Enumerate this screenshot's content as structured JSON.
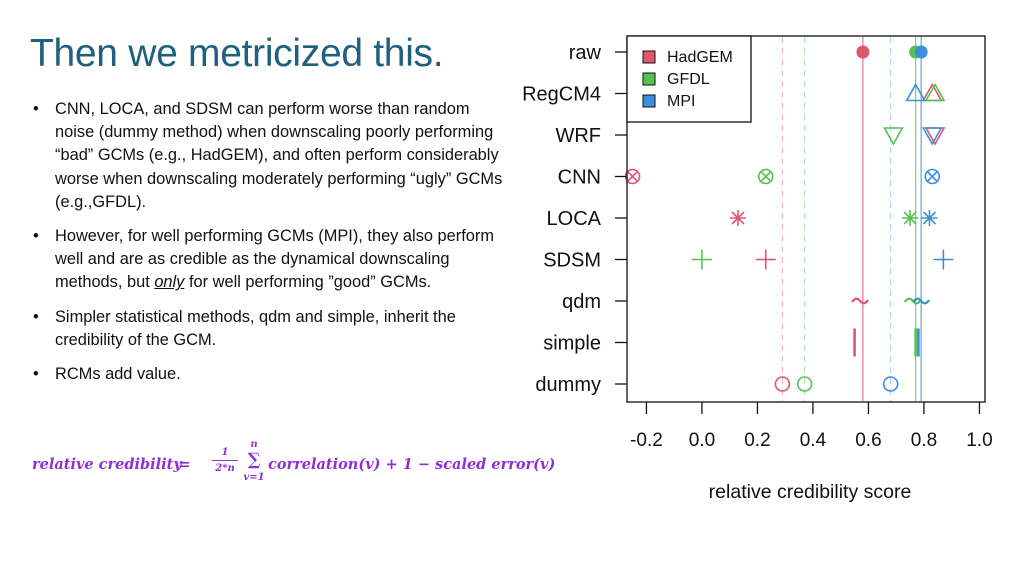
{
  "slide": {
    "title": "Then we metricized this.",
    "bullets": [
      {
        "text_before": "CNN, LOCA, and SDSM can perform worse than random noise (dummy method) when downscaling poorly performing “bad” GCMs (e.g., HadGEM), and often perform considerably worse when downscaling moderately performing “ugly” GCMs (e.g.,GFDL).",
        "emphasis": "",
        "text_after": ""
      },
      {
        "text_before": "However, for well performing GCMs (MPI), they also perform well and are as credible as the dynamical downscaling methods, but ",
        "emphasis": "only",
        "text_after": " for well performing ”good” GCMs."
      },
      {
        "text_before": "Simpler statistical methods, qdm and simple, inherit the credibility of the GCM.",
        "emphasis": "",
        "text_after": ""
      },
      {
        "text_before": "RCMs add value.",
        "emphasis": "",
        "text_after": ""
      }
    ],
    "formula": {
      "lhs": "relative credibility",
      "equals": "=",
      "frac_num": "1",
      "frac_den": "2*n",
      "sum_top": "n",
      "sum_symbol": "∑",
      "sum_bottom": "v=1",
      "rhs": "correlation(v) + 1 − scaled error(v)"
    },
    "color": "#8f2fd8"
  },
  "chart_data": {
    "type": "scatter",
    "title": "",
    "xlabel": "relative credibility score",
    "ylabel": "",
    "xlim": [
      -0.27,
      1.02
    ],
    "xticks": [
      -0.2,
      0.0,
      0.2,
      0.4,
      0.6,
      0.8,
      1.0
    ],
    "xtick_labels": [
      "-0.2",
      "0.0",
      "0.2",
      "0.4",
      "0.6",
      "0.8",
      "1.0"
    ],
    "categories": [
      "raw",
      "RegCM4",
      "WRF",
      "CNN",
      "LOCA",
      "SDSM",
      "qdm",
      "simple",
      "dummy"
    ],
    "legend_position": "top-left",
    "grid": false,
    "series": [
      {
        "name": "HadGEM",
        "color": "#e0566f",
        "points": [
          {
            "method": "raw",
            "x": 0.58,
            "marker": "filled-circle"
          },
          {
            "method": "RegCM4",
            "x": 0.83,
            "marker": "triangle-up"
          },
          {
            "method": "WRF",
            "x": 0.84,
            "marker": "triangle-down"
          },
          {
            "method": "CNN",
            "x": -0.25,
            "marker": "circle-x"
          },
          {
            "method": "LOCA",
            "x": 0.13,
            "marker": "asterisk"
          },
          {
            "method": "SDSM",
            "x": 0.23,
            "marker": "plus"
          },
          {
            "method": "qdm",
            "x": 0.57,
            "marker": "tilde"
          },
          {
            "method": "simple",
            "x": 0.55,
            "marker": "bar"
          },
          {
            "method": "dummy",
            "x": 0.29,
            "marker": "open-circle"
          }
        ],
        "reference_lines": [
          {
            "x": 0.58,
            "style": "solid"
          },
          {
            "x": 0.29,
            "style": "dashed"
          }
        ]
      },
      {
        "name": "GFDL",
        "color": "#55c24f",
        "points": [
          {
            "method": "raw",
            "x": 0.77,
            "marker": "filled-circle"
          },
          {
            "method": "RegCM4",
            "x": 0.84,
            "marker": "triangle-up"
          },
          {
            "method": "WRF",
            "x": 0.69,
            "marker": "triangle-down"
          },
          {
            "method": "CNN",
            "x": 0.23,
            "marker": "circle-x"
          },
          {
            "method": "LOCA",
            "x": 0.75,
            "marker": "asterisk"
          },
          {
            "method": "SDSM",
            "x": 0.0,
            "marker": "plus"
          },
          {
            "method": "qdm",
            "x": 0.76,
            "marker": "tilde"
          },
          {
            "method": "simple",
            "x": 0.77,
            "marker": "bar"
          },
          {
            "method": "dummy",
            "x": 0.37,
            "marker": "open-circle"
          }
        ],
        "reference_lines": [
          {
            "x": 0.77,
            "style": "solid"
          },
          {
            "x": 0.37,
            "style": "dashed"
          }
        ]
      },
      {
        "name": "MPI",
        "color": "#3e8fdb",
        "points": [
          {
            "method": "raw",
            "x": 0.79,
            "marker": "filled-circle"
          },
          {
            "method": "RegCM4",
            "x": 0.77,
            "marker": "triangle-up"
          },
          {
            "method": "WRF",
            "x": 0.83,
            "marker": "triangle-down"
          },
          {
            "method": "CNN",
            "x": 0.83,
            "marker": "circle-x"
          },
          {
            "method": "LOCA",
            "x": 0.82,
            "marker": "asterisk"
          },
          {
            "method": "SDSM",
            "x": 0.87,
            "marker": "plus"
          },
          {
            "method": "qdm",
            "x": 0.79,
            "marker": "tilde"
          },
          {
            "method": "simple",
            "x": 0.78,
            "marker": "bar"
          },
          {
            "method": "dummy",
            "x": 0.68,
            "marker": "open-circle"
          }
        ],
        "reference_lines": [
          {
            "x": 0.79,
            "style": "solid"
          },
          {
            "x": 0.68,
            "style": "dashed"
          }
        ]
      }
    ]
  }
}
